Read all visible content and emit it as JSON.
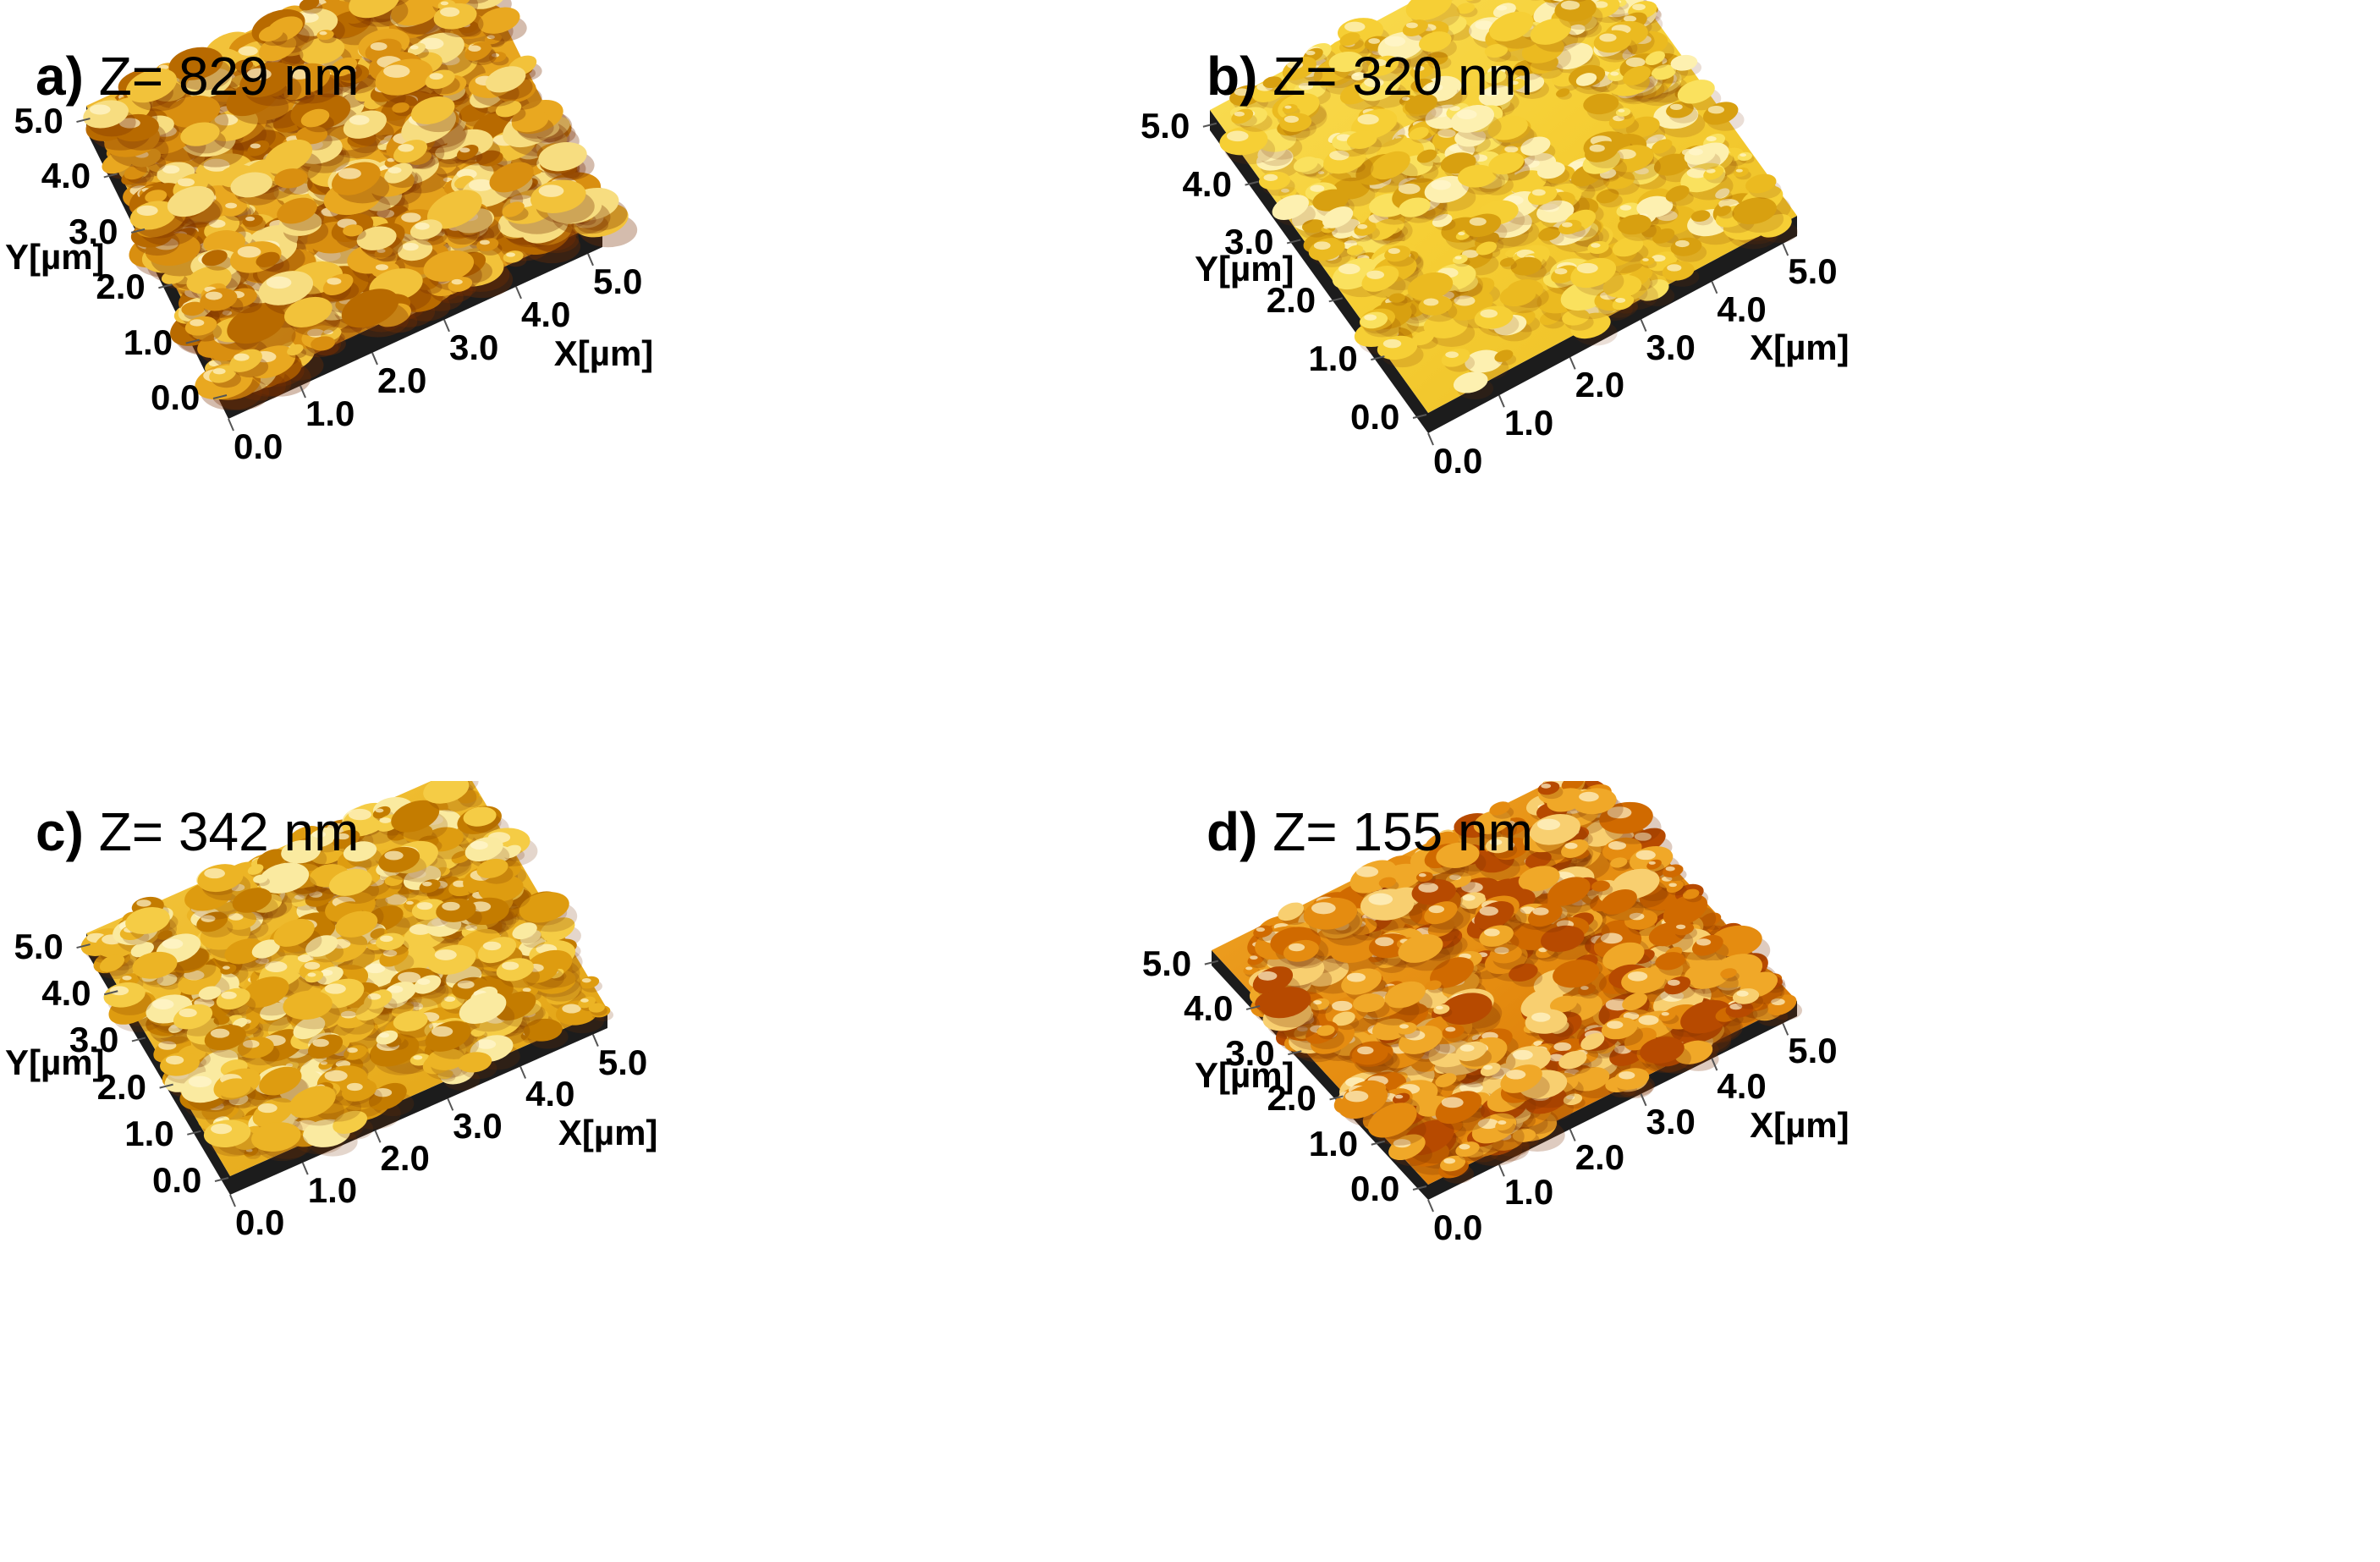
{
  "panels": [
    {
      "letter": "a)",
      "z_label": "Z= 829 nm",
      "palette": "gold-dark",
      "x_axis_label": "X[µm]",
      "y_axis_label": "Y[µm]",
      "x_ticks": [
        "0.0",
        "1.0",
        "2.0",
        "3.0",
        "4.0",
        "5.0"
      ],
      "y_ticks": [
        "0.0",
        "1.0",
        "2.0",
        "3.0",
        "4.0",
        "5.0"
      ]
    },
    {
      "letter": "b)",
      "z_label": "Z= 320 nm",
      "palette": "gold-light",
      "x_axis_label": "X[µm]",
      "y_axis_label": "Y[µm]",
      "x_ticks": [
        "0.0",
        "1.0",
        "2.0",
        "3.0",
        "4.0",
        "5.0"
      ],
      "y_ticks": [
        "0.0",
        "1.0",
        "2.0",
        "3.0",
        "4.0",
        "5.0"
      ]
    },
    {
      "letter": "c)",
      "z_label": "Z= 342 nm",
      "palette": "gold-medium",
      "x_axis_label": "X[µm]",
      "y_axis_label": "Y[µm]",
      "x_ticks": [
        "0.0",
        "1.0",
        "2.0",
        "3.0",
        "4.0",
        "5.0"
      ],
      "y_ticks": [
        "0.0",
        "1.0",
        "2.0",
        "3.0",
        "4.0",
        "5.0"
      ]
    },
    {
      "letter": "d)",
      "z_label": "Z= 155 nm",
      "palette": "orange",
      "x_axis_label": "X[µm]",
      "y_axis_label": "Y[µm]",
      "x_ticks": [
        "0.0",
        "1.0",
        "2.0",
        "3.0",
        "4.0",
        "5.0"
      ],
      "y_ticks": [
        "0.0",
        "1.0",
        "2.0",
        "3.0",
        "4.0",
        "5.0"
      ]
    }
  ],
  "colors": {
    "gold-dark": [
      "#b86a00",
      "#d98f10",
      "#e9a820",
      "#f2c23a",
      "#f7dd80"
    ],
    "gold-light": [
      "#d8a010",
      "#ebba20",
      "#f6cf35",
      "#fae15e",
      "#fdf0b0"
    ],
    "gold-medium": [
      "#c47c00",
      "#de9c10",
      "#ecb425",
      "#f5cc45",
      "#faeaa0"
    ],
    "orange": [
      "#b74a00",
      "#d06a00",
      "#e58c10",
      "#f0a828",
      "#f8cf70"
    ],
    "base": "#1c1c1c",
    "shadow": "#7a3000"
  }
}
